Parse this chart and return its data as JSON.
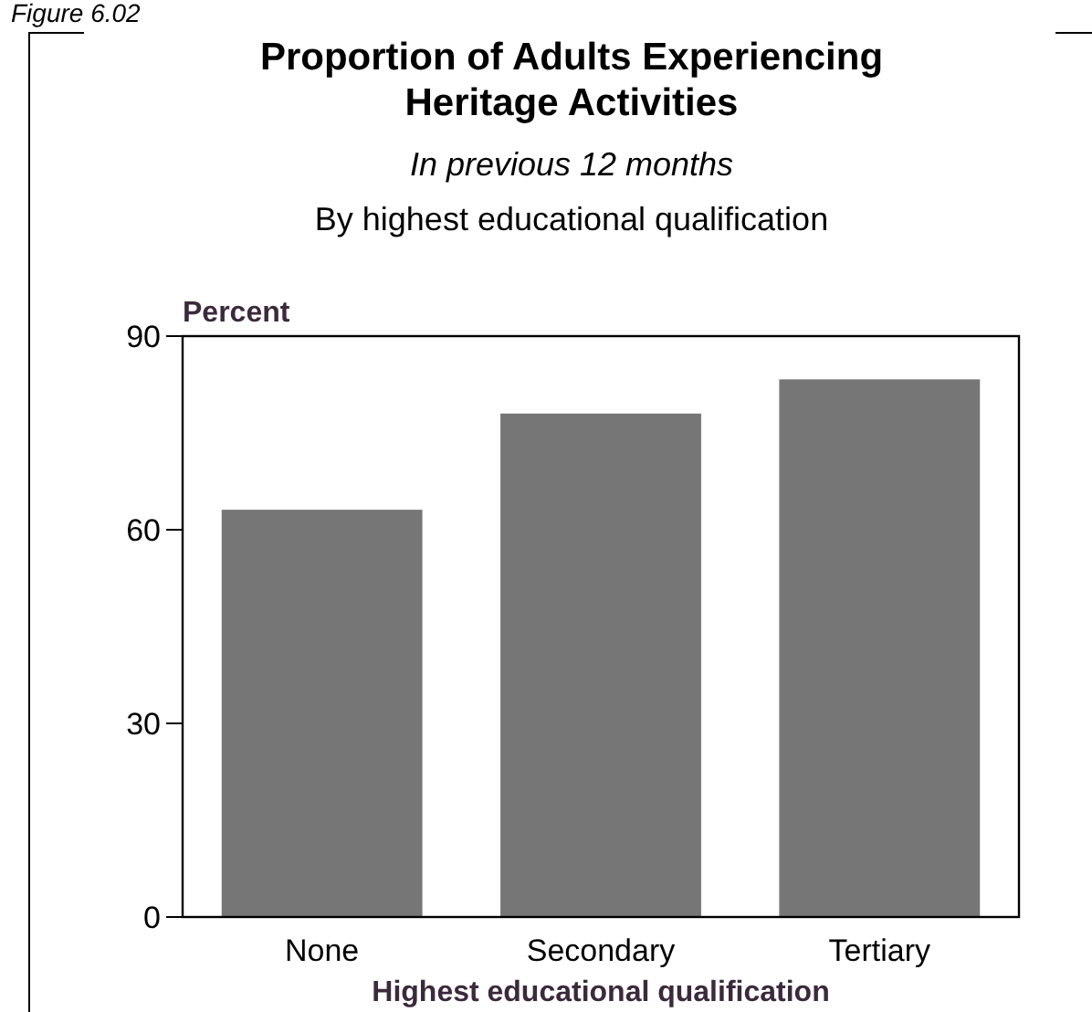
{
  "chart_data": {
    "type": "bar",
    "title": "Proportion of Adults Experiencing Heritage Activities",
    "subtitle": "In previous 12 months",
    "annotations": [
      "By highest educational qualification",
      "Figure 6.02"
    ],
    "ylabel": "Percent",
    "xlabel": "Highest educational qualification",
    "categories": [
      "None",
      "Secondary",
      "Tertiary"
    ],
    "values": [
      63.1,
      78,
      83.3
    ],
    "color": "#767676",
    "ylim": [
      0,
      90
    ],
    "yticks": [
      0,
      30,
      60,
      90
    ],
    "grid": false
  }
}
